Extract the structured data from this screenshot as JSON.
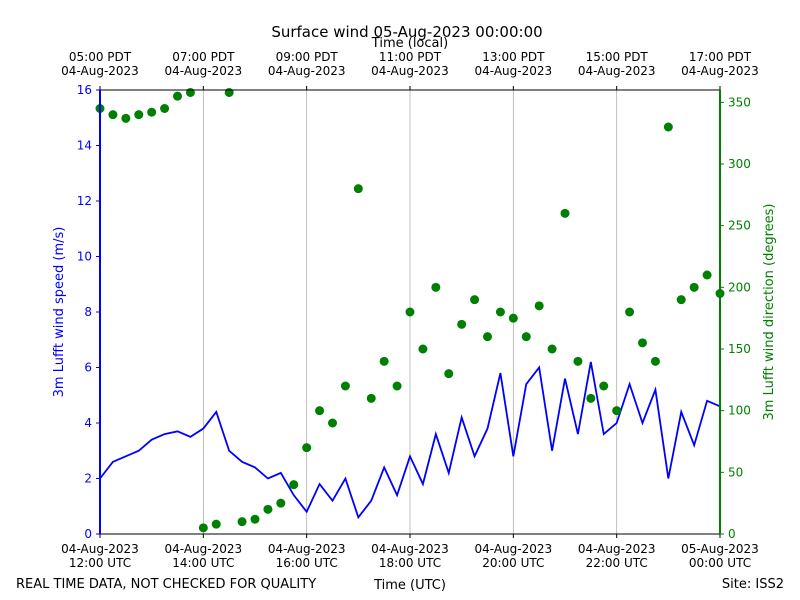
{
  "chart_data": {
    "type": "line-scatter",
    "title": "Surface wind 05-Aug-2023 00:00:00",
    "x2label": "Time (local)",
    "xlabel": "Time (UTC)",
    "ylabel": "3m Lufft wind speed (m/s)",
    "y2label": "3m Lufft wind direction (degrees)",
    "footer_left": "REAL TIME DATA, NOT CHECKED FOR QUALITY",
    "footer_right": "Site: ISS2",
    "xlim": [
      "2023-08-04T12:00",
      "2023-08-05T00:00"
    ],
    "xticks": [
      {
        "value": "2023-08-04T12:00",
        "label": [
          "04-Aug-2023",
          "12:00 UTC"
        ]
      },
      {
        "value": "2023-08-04T14:00",
        "label": [
          "04-Aug-2023",
          "14:00 UTC"
        ]
      },
      {
        "value": "2023-08-04T16:00",
        "label": [
          "04-Aug-2023",
          "16:00 UTC"
        ]
      },
      {
        "value": "2023-08-04T18:00",
        "label": [
          "04-Aug-2023",
          "18:00 UTC"
        ]
      },
      {
        "value": "2023-08-04T20:00",
        "label": [
          "04-Aug-2023",
          "20:00 UTC"
        ]
      },
      {
        "value": "2023-08-04T22:00",
        "label": [
          "04-Aug-2023",
          "22:00 UTC"
        ]
      },
      {
        "value": "2023-08-05T00:00",
        "label": [
          "05-Aug-2023",
          "00:00 UTC"
        ]
      }
    ],
    "x2ticks": [
      {
        "value": "2023-08-04T12:00",
        "label": [
          "05:00 PDT",
          "04-Aug-2023"
        ]
      },
      {
        "value": "2023-08-04T14:00",
        "label": [
          "07:00 PDT",
          "04-Aug-2023"
        ]
      },
      {
        "value": "2023-08-04T16:00",
        "label": [
          "09:00 PDT",
          "04-Aug-2023"
        ]
      },
      {
        "value": "2023-08-04T18:00",
        "label": [
          "11:00 PDT",
          "04-Aug-2023"
        ]
      },
      {
        "value": "2023-08-04T20:00",
        "label": [
          "13:00 PDT",
          "04-Aug-2023"
        ]
      },
      {
        "value": "2023-08-04T22:00",
        "label": [
          "15:00 PDT",
          "04-Aug-2023"
        ]
      },
      {
        "value": "2023-08-05T00:00",
        "label": [
          "17:00 PDT",
          "04-Aug-2023"
        ]
      }
    ],
    "ylim": [
      0,
      16
    ],
    "yticks": [
      0,
      2,
      4,
      6,
      8,
      10,
      12,
      14,
      16
    ],
    "y2lim": [
      0,
      360
    ],
    "y2ticks": [
      0,
      50,
      100,
      150,
      200,
      250,
      300,
      350
    ],
    "grid": true,
    "x": [
      "2023-08-04T12:00",
      "2023-08-04T12:15",
      "2023-08-04T12:30",
      "2023-08-04T12:45",
      "2023-08-04T13:00",
      "2023-08-04T13:15",
      "2023-08-04T13:30",
      "2023-08-04T13:45",
      "2023-08-04T14:00",
      "2023-08-04T14:15",
      "2023-08-04T14:30",
      "2023-08-04T14:45",
      "2023-08-04T15:00",
      "2023-08-04T15:15",
      "2023-08-04T15:30",
      "2023-08-04T15:45",
      "2023-08-04T16:00",
      "2023-08-04T16:15",
      "2023-08-04T16:30",
      "2023-08-04T16:45",
      "2023-08-04T17:00",
      "2023-08-04T17:15",
      "2023-08-04T17:30",
      "2023-08-04T17:45",
      "2023-08-04T18:00",
      "2023-08-04T18:15",
      "2023-08-04T18:30",
      "2023-08-04T18:45",
      "2023-08-04T19:00",
      "2023-08-04T19:15",
      "2023-08-04T19:30",
      "2023-08-04T19:45",
      "2023-08-04T20:00",
      "2023-08-04T20:15",
      "2023-08-04T20:30",
      "2023-08-04T20:45",
      "2023-08-04T21:00",
      "2023-08-04T21:15",
      "2023-08-04T21:30",
      "2023-08-04T21:45",
      "2023-08-04T22:00",
      "2023-08-04T22:15",
      "2023-08-04T22:30",
      "2023-08-04T22:45",
      "2023-08-04T23:00",
      "2023-08-04T23:15",
      "2023-08-04T23:30",
      "2023-08-04T23:45",
      "2023-08-05T00:00"
    ],
    "series": [
      {
        "name": "3m Lufft wind speed",
        "color": "#0000ff",
        "axis": "y",
        "values": [
          2.0,
          2.6,
          2.8,
          3.0,
          3.4,
          3.6,
          3.7,
          3.5,
          3.8,
          4.4,
          3.0,
          2.6,
          2.4,
          2.0,
          2.2,
          1.4,
          0.8,
          1.8,
          1.2,
          2.0,
          0.6,
          1.2,
          2.4,
          1.4,
          2.8,
          1.8,
          3.6,
          2.2,
          4.2,
          2.8,
          3.8,
          5.8,
          2.8,
          5.4,
          6.0,
          3.0,
          5.6,
          3.6,
          6.2,
          3.6,
          4.0,
          5.4,
          4.0,
          5.2,
          2.0,
          4.4,
          3.2,
          4.8,
          4.6
        ]
      },
      {
        "name": "3m Lufft wind direction",
        "color": "#008000",
        "axis": "y2",
        "values": [
          345,
          340,
          337,
          340,
          342,
          345,
          355,
          358,
          5,
          8,
          358,
          10,
          12,
          20,
          25,
          40,
          70,
          100,
          90,
          120,
          280,
          110,
          140,
          120,
          180,
          150,
          200,
          130,
          170,
          190,
          160,
          180,
          175,
          160,
          185,
          150,
          260,
          140,
          110,
          120,
          100,
          180,
          155,
          140,
          330,
          190,
          200,
          210,
          195
        ]
      }
    ]
  }
}
